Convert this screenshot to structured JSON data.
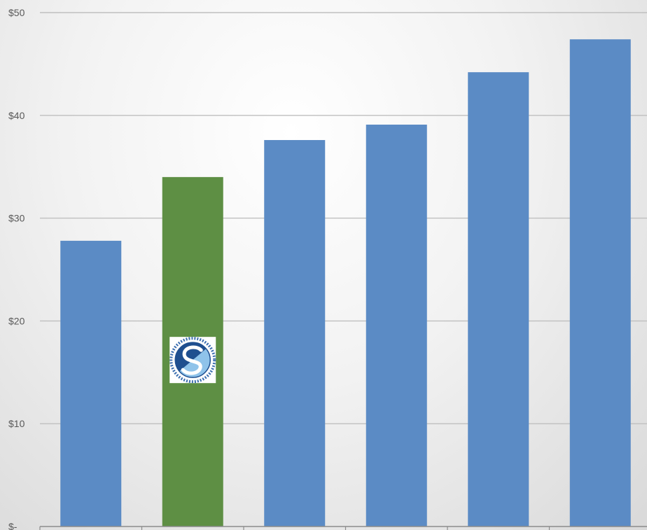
{
  "chart_data": {
    "type": "bar",
    "categories": [
      "",
      "",
      "",
      "",
      "",
      ""
    ],
    "values": [
      27.8,
      34.0,
      37.6,
      39.1,
      44.2,
      47.4
    ],
    "bar_colors": [
      "#5b8bc5",
      "#5e8f44",
      "#5b8bc5",
      "#5b8bc5",
      "#5b8bc5",
      "#5b8bc5"
    ],
    "highlight_index": 1,
    "highlight_logo": "company-seal-logo",
    "yticks": [
      0,
      10,
      20,
      30,
      40,
      50
    ],
    "ytick_labels": [
      "$-",
      "$10",
      "$20",
      "$30",
      "$40",
      "$50"
    ],
    "ylim": [
      0,
      50
    ],
    "grid": true,
    "title": "",
    "xlabel": "",
    "ylabel": ""
  }
}
